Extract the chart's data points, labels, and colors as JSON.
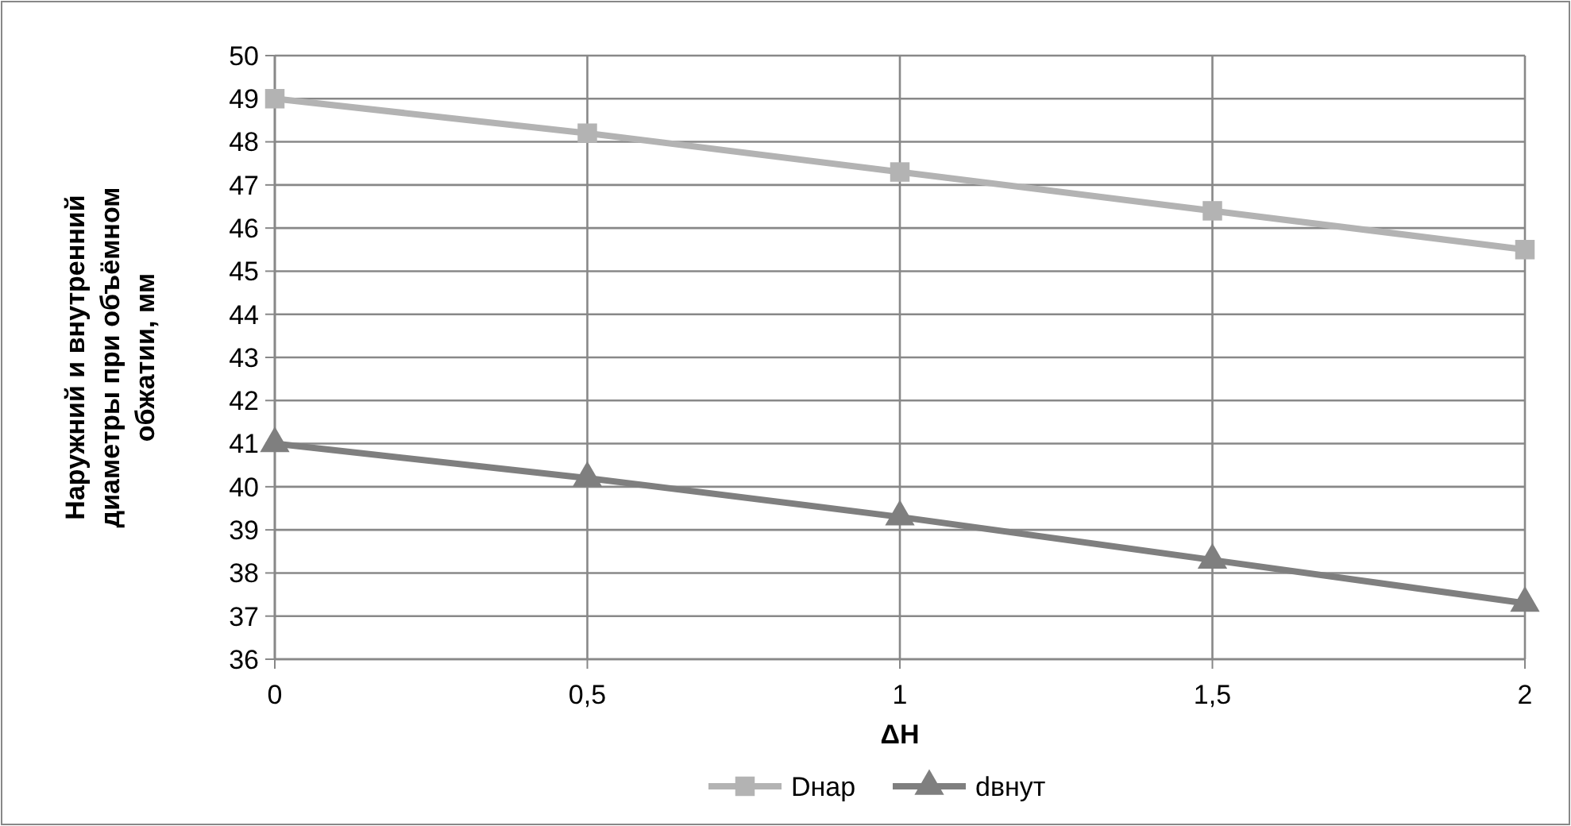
{
  "chart_data": {
    "type": "line",
    "xlabel": "ΔH",
    "ylabel": "Наружний и внутренний\nдиаметры при объёмном\nобжатии, мм",
    "x": [
      0,
      0.5,
      1,
      1.5,
      2
    ],
    "xlim": [
      0,
      2
    ],
    "xticks": [
      0,
      {
        "value": 0.5,
        "label": "0,5"
      },
      1,
      {
        "value": 1.5,
        "label": "1,5"
      },
      2
    ],
    "ylim": [
      36,
      50
    ],
    "yticks": [
      36,
      37,
      38,
      39,
      40,
      41,
      42,
      43,
      44,
      45,
      46,
      47,
      48,
      49,
      50
    ],
    "grid": true,
    "legend": "bottom",
    "line_style": "solid",
    "series": [
      {
        "name": "Dнар",
        "color": "#b3b3b3",
        "marker": "square",
        "values": [
          49,
          48.2,
          47.3,
          46.4,
          45.5
        ]
      },
      {
        "name": "dвнут",
        "color": "#7f7f7f",
        "marker": "triangle",
        "values": [
          41,
          40.2,
          39.3,
          38.3,
          37.3
        ]
      }
    ]
  }
}
